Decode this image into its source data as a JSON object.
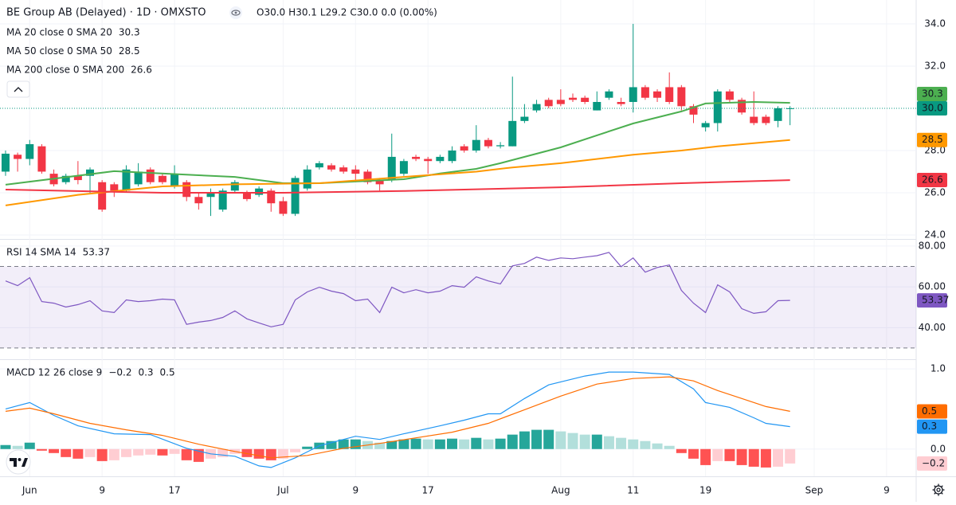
{
  "header": {
    "title": "BE Group AB (Delayed) · 1D · OMXSTO",
    "ohlc": [
      {
        "key": "O",
        "value": "30.0"
      },
      {
        "key": "H",
        "value": "30.1"
      },
      {
        "key": "L",
        "value": "29.2"
      },
      {
        "key": "C",
        "value": "30.0"
      }
    ],
    "change": "0.0 (0.00%)"
  },
  "chart_data": [
    {
      "type": "candlestick",
      "xlim": [
        -0.46,
        75.45
      ],
      "xticks": [
        {
          "value": 2,
          "label": "Jun"
        },
        {
          "value": 8,
          "label": "9"
        },
        {
          "value": 14,
          "label": "17"
        },
        {
          "value": 23,
          "label": "Jul"
        },
        {
          "value": 29,
          "label": "9"
        },
        {
          "value": 35,
          "label": "17"
        },
        {
          "value": 46,
          "label": "Aug"
        },
        {
          "value": 52,
          "label": "11"
        },
        {
          "value": 58,
          "label": "19"
        },
        {
          "value": 67,
          "label": "Sep"
        },
        {
          "value": 73,
          "label": "9"
        }
      ],
      "ylim": [
        23.81,
        35.13
      ],
      "yticks": [
        {
          "value": 24,
          "label": "24.0"
        },
        {
          "value": 26,
          "label": "26.0"
        },
        {
          "value": 28,
          "label": "28.0"
        },
        {
          "value": 32,
          "label": "32.0"
        },
        {
          "value": 34,
          "label": "34.0"
        }
      ],
      "grid": true,
      "up_color": "#089981",
      "down_color": "#f23645",
      "last_label": "30.0",
      "open": [
        27.0,
        27.8,
        27.6,
        28.2,
        26.9,
        26.5,
        26.8,
        26.8,
        26.5,
        26.4,
        26.1,
        26.4,
        27.1,
        26.8,
        26.3,
        26.5,
        25.8,
        25.8,
        25.2,
        26.1,
        26.0,
        25.9,
        26.1,
        25.6,
        25.0,
        26.2,
        27.2,
        27.3,
        27.2,
        27.1,
        27.0,
        26.6,
        26.6,
        26.9,
        27.7,
        27.6,
        27.5,
        27.5,
        28.2,
        28.0,
        28.5,
        28.2,
        28.2,
        29.4,
        29.9,
        30.4,
        30.4,
        30.5,
        30.5,
        29.9,
        30.5,
        30.3,
        30.3,
        31.0,
        30.8,
        31.0,
        31.0,
        30.1,
        29.1,
        29.3,
        30.8,
        30.4,
        29.6,
        29.6,
        29.4,
        30.0
      ],
      "high": [
        28.0,
        27.9,
        28.5,
        28.3,
        27.1,
        26.9,
        27.5,
        27.2,
        26.6,
        26.5,
        27.3,
        27.4,
        27.2,
        26.9,
        27.3,
        26.6,
        26.0,
        26.2,
        26.2,
        26.6,
        26.1,
        26.3,
        26.2,
        25.8,
        26.8,
        27.3,
        27.5,
        27.4,
        27.3,
        27.3,
        27.1,
        26.7,
        28.8,
        27.6,
        27.8,
        27.7,
        27.8,
        28.2,
        28.3,
        29.2,
        28.6,
        28.4,
        31.5,
        30.2,
        30.4,
        30.5,
        30.9,
        30.7,
        30.6,
        30.8,
        30.9,
        30.5,
        34.0,
        31.1,
        30.9,
        31.7,
        31.1,
        30.2,
        29.4,
        30.9,
        30.9,
        30.5,
        30.8,
        29.7,
        30.1,
        30.1
      ],
      "low": [
        26.8,
        27.0,
        27.3,
        26.9,
        26.3,
        26.4,
        26.4,
        26.0,
        25.1,
        25.8,
        26.0,
        26.3,
        26.4,
        26.4,
        26.2,
        25.6,
        25.2,
        24.9,
        25.1,
        26.0,
        25.6,
        25.8,
        25.1,
        24.9,
        24.9,
        26.1,
        27.1,
        27.0,
        26.9,
        26.5,
        26.4,
        26.1,
        26.5,
        26.8,
        27.5,
        26.9,
        27.4,
        27.4,
        27.9,
        27.9,
        28.1,
        28.1,
        28.2,
        29.3,
        29.8,
        30.0,
        30.1,
        30.3,
        30.2,
        29.9,
        30.4,
        30.1,
        29.8,
        30.4,
        30.3,
        30.2,
        29.9,
        29.3,
        28.9,
        28.9,
        30.3,
        29.7,
        29.2,
        29.2,
        29.1,
        29.2
      ],
      "close": [
        27.85,
        27.6,
        28.3,
        27.0,
        26.4,
        26.8,
        26.6,
        27.1,
        25.2,
        26.1,
        27.1,
        27.0,
        26.5,
        26.5,
        26.9,
        25.8,
        25.5,
        26.0,
        26.1,
        26.5,
        25.7,
        26.2,
        25.5,
        25.0,
        26.7,
        27.1,
        27.4,
        27.1,
        27.0,
        26.9,
        26.5,
        26.4,
        27.7,
        27.5,
        27.6,
        27.5,
        27.7,
        28.0,
        28.0,
        28.5,
        28.2,
        28.25,
        29.4,
        29.6,
        30.2,
        30.1,
        30.2,
        30.4,
        30.3,
        30.3,
        30.8,
        30.2,
        31.0,
        30.5,
        30.5,
        30.3,
        30.1,
        29.7,
        29.3,
        30.8,
        30.4,
        29.8,
        29.3,
        29.3,
        30.0,
        30.0
      ],
      "series": [
        {
          "name": "MA 20 close 0 SMA 20",
          "color": "#4caf50",
          "value_label": "30.3",
          "x": [
            0,
            9,
            16,
            19,
            23,
            26,
            29,
            33,
            36,
            39,
            41,
            46,
            49,
            52,
            56,
            58,
            62,
            65
          ],
          "values": [
            26.38,
            27.02,
            26.83,
            26.75,
            26.45,
            26.45,
            26.53,
            26.64,
            26.91,
            27.13,
            27.4,
            28.15,
            28.72,
            29.28,
            29.85,
            30.23,
            30.3,
            30.26
          ]
        },
        {
          "name": "MA 50 close 0 SMA 50",
          "color": "#ff9800",
          "value_label": "28.5",
          "x": [
            0,
            6,
            13,
            19,
            26,
            33,
            39,
            42,
            46,
            52,
            56,
            59,
            65
          ],
          "values": [
            25.4,
            25.9,
            26.3,
            26.4,
            26.45,
            26.75,
            27.0,
            27.2,
            27.4,
            27.8,
            28.0,
            28.2,
            28.5
          ]
        },
        {
          "name": "MA 200 close 0 SMA 200",
          "color": "#f23645",
          "value_label": "26.6",
          "x": [
            0,
            13,
            23,
            33,
            46,
            56,
            65
          ],
          "values": [
            26.15,
            26.0,
            26.0,
            26.08,
            26.26,
            26.45,
            26.6
          ]
        }
      ]
    },
    {
      "type": "line",
      "title": "RSI 14 SMA 14",
      "ylim": [
        24.5,
        83.1
      ],
      "yticks": [
        {
          "value": 80,
          "label": "80.00"
        },
        {
          "value": 60,
          "label": "60.00"
        },
        {
          "value": 40,
          "label": "40.00"
        }
      ],
      "band": [
        30,
        70
      ],
      "series": [
        {
          "color": "#7e57c2",
          "value_label": "53.37",
          "values": [
            62.9,
            60.6,
            64.5,
            52.8,
            52.0,
            50.1,
            51.3,
            53.2,
            48.2,
            47.4,
            53.6,
            52.8,
            53.2,
            54.0,
            53.6,
            41.6,
            42.7,
            43.5,
            45.0,
            48.2,
            44.3,
            42.3,
            40.4,
            41.6,
            53.6,
            57.5,
            59.8,
            57.9,
            56.7,
            53.2,
            54.0,
            47.4,
            59.8,
            57.1,
            58.6,
            57.1,
            57.9,
            60.6,
            59.8,
            64.9,
            62.9,
            61.4,
            70.3,
            71.5,
            74.6,
            73.0,
            74.2,
            73.8,
            74.6,
            75.3,
            76.9,
            69.9,
            74.2,
            67.2,
            69.5,
            70.7,
            58.3,
            52.0,
            47.4,
            61.0,
            57.5,
            49.3,
            47.0,
            47.8,
            53.2,
            53.37
          ]
        }
      ]
    },
    {
      "type": "line",
      "title": "MACD 12 26 close 9",
      "ylim": [
        -0.34,
        1.11
      ],
      "yticks": [
        {
          "value": 1,
          "label": "1.0"
        },
        {
          "value": 0,
          "label": "0.0"
        }
      ],
      "series": [
        {
          "type": "bar",
          "color": "#f7a9a9",
          "value_label": "−0.2",
          "values": [
            0.05,
            0.04,
            0.08,
            -0.02,
            -0.05,
            -0.1,
            -0.12,
            -0.1,
            -0.15,
            -0.14,
            -0.1,
            -0.08,
            -0.07,
            -0.08,
            -0.06,
            -0.14,
            -0.16,
            -0.12,
            -0.1,
            -0.06,
            -0.1,
            -0.12,
            -0.14,
            -0.12,
            -0.04,
            0.03,
            0.08,
            0.1,
            0.12,
            0.12,
            0.1,
            0.08,
            0.1,
            0.12,
            0.13,
            0.12,
            0.12,
            0.13,
            0.12,
            0.14,
            0.12,
            0.13,
            0.18,
            0.22,
            0.24,
            0.24,
            0.22,
            0.2,
            0.18,
            0.18,
            0.16,
            0.14,
            0.12,
            0.1,
            0.07,
            0.04,
            -0.05,
            -0.12,
            -0.2,
            -0.15,
            -0.15,
            -0.2,
            -0.22,
            -0.23,
            -0.22,
            -0.18
          ]
        },
        {
          "color": "#2196f3",
          "value_label": "0.3",
          "x": [
            0,
            2,
            4,
            6,
            9,
            12,
            15,
            17,
            19,
            21,
            22,
            24,
            26,
            29,
            31,
            33,
            36,
            38,
            40,
            41,
            43,
            45,
            48,
            50,
            52,
            55,
            57,
            58,
            60,
            62,
            63,
            65
          ],
          "values": [
            0.5,
            0.58,
            0.42,
            0.29,
            0.19,
            0.18,
            0.01,
            -0.06,
            -0.09,
            -0.21,
            -0.23,
            -0.11,
            0.04,
            0.16,
            0.12,
            0.19,
            0.29,
            0.36,
            0.44,
            0.44,
            0.63,
            0.8,
            0.91,
            0.96,
            0.96,
            0.93,
            0.75,
            0.58,
            0.52,
            0.39,
            0.32,
            0.28
          ]
        },
        {
          "color": "#ff6d00",
          "value_label": "0.5",
          "x": [
            0,
            2,
            4,
            7,
            10,
            13,
            16,
            19,
            22,
            25,
            28,
            31,
            34,
            37,
            40,
            43,
            46,
            49,
            52,
            55,
            57,
            59,
            61,
            63,
            65
          ],
          "values": [
            0.47,
            0.51,
            0.44,
            0.32,
            0.24,
            0.17,
            0.06,
            -0.03,
            -0.11,
            -0.08,
            0.01,
            0.07,
            0.14,
            0.21,
            0.32,
            0.49,
            0.66,
            0.81,
            0.88,
            0.9,
            0.85,
            0.73,
            0.63,
            0.53,
            0.47
          ]
        }
      ]
    }
  ]
}
